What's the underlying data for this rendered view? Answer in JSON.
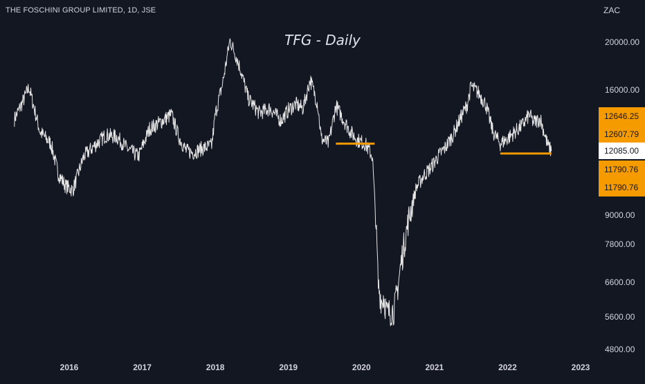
{
  "header": {
    "symbol": "THE FOSCHINI GROUP LIMITED, 1D, JSE",
    "currency": "ZAC",
    "title": "TFG - Daily"
  },
  "colors": {
    "background": "#131722",
    "line": "#e6e6e6",
    "support": "#f59b00",
    "text": "#d1d4dc",
    "label_orange": "#f59b00",
    "label_white": "#ffffff"
  },
  "chart_data": {
    "type": "line",
    "title": "TFG - Daily",
    "ylabel": "ZAC",
    "xlim": [
      2015.25,
      2023.3
    ],
    "ylim": [
      4600,
      22000
    ],
    "y_scale": "log",
    "grid": false,
    "x_ticks": [
      {
        "value": 2016,
        "label": "2016"
      },
      {
        "value": 2017,
        "label": "2017"
      },
      {
        "value": 2018,
        "label": "2018"
      },
      {
        "value": 2019,
        "label": "2019"
      },
      {
        "value": 2020,
        "label": "2020"
      },
      {
        "value": 2021,
        "label": "2021"
      },
      {
        "value": 2022,
        "label": "2022"
      },
      {
        "value": 2023,
        "label": "2023"
      }
    ],
    "y_ticks": [
      {
        "value": 20000,
        "label": "20000.00"
      },
      {
        "value": 16000,
        "label": "16000.00"
      },
      {
        "value": 9000,
        "label": "9000.00"
      },
      {
        "value": 7800,
        "label": "7800.00"
      },
      {
        "value": 6600,
        "label": "6600.00"
      },
      {
        "value": 5600,
        "label": "5600.00"
      },
      {
        "value": 4800,
        "label": "4800.00"
      }
    ],
    "series": [
      {
        "x": [
          2015.25,
          2015.35,
          2015.45,
          2015.6,
          2015.75,
          2015.85,
          2015.95,
          2016.05,
          2016.2,
          2016.35,
          2016.5,
          2016.65,
          2016.8,
          2016.95,
          2017.1,
          2017.25,
          2017.4,
          2017.5,
          2017.6,
          2017.7,
          2017.8,
          2017.95,
          2018.0,
          2018.1,
          2018.2,
          2018.28,
          2018.35,
          2018.45,
          2018.6,
          2018.75,
          2018.9,
          2019.0,
          2019.1,
          2019.2,
          2019.3,
          2019.4,
          2019.45,
          2019.55,
          2019.65,
          2019.75,
          2019.85,
          2019.95,
          2020.05,
          2020.15,
          2020.2,
          2020.23,
          2020.28,
          2020.3,
          2020.35,
          2020.45,
          2020.55,
          2020.65,
          2020.75,
          2020.85,
          2020.95,
          2021.05,
          2021.15,
          2021.25,
          2021.35,
          2021.45,
          2021.5,
          2021.6,
          2021.7,
          2021.8,
          2021.9,
          2022.0,
          2022.1,
          2022.2,
          2022.3,
          2022.35,
          2022.45,
          2022.55,
          2022.6
        ],
        "y": [
          14000,
          15000,
          16200,
          13200,
          12500,
          10900,
          10300,
          10100,
          11800,
          12400,
          13000,
          12900,
          12200,
          11800,
          13400,
          13800,
          14300,
          12900,
          12100,
          12000,
          12200,
          12400,
          14300,
          16500,
          20200,
          18800,
          17500,
          15400,
          14400,
          14700,
          13900,
          14600,
          15000,
          14700,
          16800,
          15000,
          12800,
          12500,
          14900,
          14000,
          13200,
          12700,
          12500,
          11800,
          8500,
          6500,
          6000,
          6200,
          5700,
          5800,
          7300,
          8900,
          10200,
          10800,
          11200,
          11800,
          12300,
          13000,
          14000,
          15000,
          16300,
          15800,
          15000,
          13200,
          12500,
          12800,
          13200,
          13600,
          14300,
          13800,
          14000,
          12400,
          12085
        ]
      }
    ],
    "support_levels": [
      {
        "y": 12500,
        "x_from": 2019.65,
        "x_to": 2020.18
      },
      {
        "y": 11950,
        "x_from": 2021.9,
        "x_to": 2022.6
      }
    ],
    "price_labels": [
      {
        "value": "12646.25",
        "style": "orange"
      },
      {
        "value": "12607.79",
        "style": "orange"
      },
      {
        "value": "12085.00",
        "style": "white"
      },
      {
        "value": "11790.76",
        "style": "orange"
      },
      {
        "value": "11790.76",
        "style": "orange"
      }
    ]
  }
}
